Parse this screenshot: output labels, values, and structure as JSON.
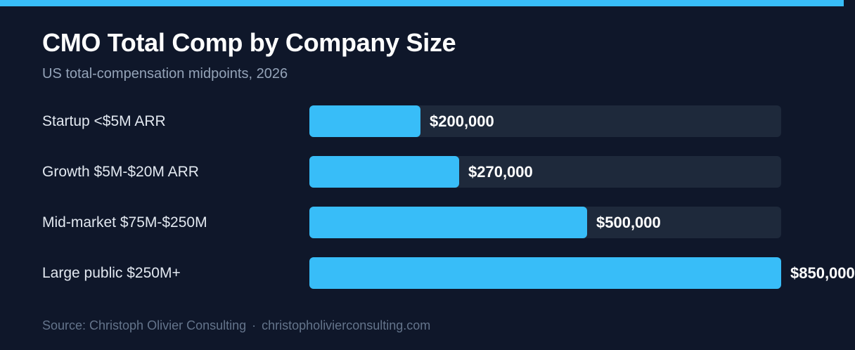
{
  "colors": {
    "background": "#0f172a",
    "accent": "#38bdf8",
    "track": "#1e293b",
    "title": "#ffffff",
    "subtitle": "#94a3b8",
    "label": "#e2e8f0",
    "footer": "#64748b"
  },
  "chart_data": {
    "type": "bar",
    "orientation": "horizontal",
    "title": "CMO Total Comp by Company Size",
    "subtitle": "US total-compensation midpoints, 2026",
    "categories": [
      "Startup <$5M ARR",
      "Growth $5M-$20M ARR",
      "Mid-market $75M-$250M",
      "Large public $250M+"
    ],
    "values": [
      200000,
      270000,
      500000,
      850000
    ],
    "value_labels": [
      "$200,000",
      "$270,000",
      "$500,000",
      "$850,000"
    ],
    "xlim": [
      0,
      850000
    ],
    "grid": false,
    "legend": "none"
  },
  "footer": {
    "source": "Source: Christoph Olivier Consulting",
    "separator": "·",
    "website": "christopholivierconsulting.com"
  }
}
